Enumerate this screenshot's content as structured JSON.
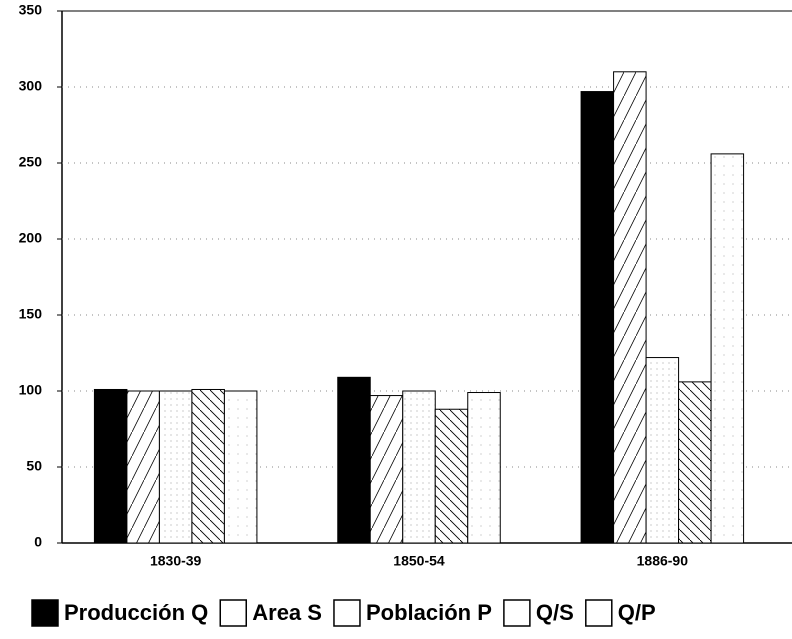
{
  "chart_data": {
    "type": "bar",
    "categories": [
      "1830-39",
      "1850-54",
      "1886-90"
    ],
    "series": [
      {
        "name": "Producción Q",
        "color": "#000000",
        "pattern": "solid",
        "values": [
          101,
          109,
          297
        ]
      },
      {
        "name": "Area S",
        "color": "#ffffff",
        "pattern": "hatch-up",
        "values": [
          100,
          97,
          310
        ]
      },
      {
        "name": "Población P",
        "color": "#ffffff",
        "pattern": "dots",
        "values": [
          100,
          100,
          122
        ]
      },
      {
        "name": "Q/S",
        "color": "#ffffff",
        "pattern": "hatch-down",
        "values": [
          101,
          88,
          106
        ]
      },
      {
        "name": "Q/P",
        "color": "#ffffff",
        "pattern": "dots-sparse",
        "values": [
          100,
          99,
          256
        ]
      }
    ],
    "ylim": [
      0,
      350
    ],
    "yticks": [
      0,
      50,
      100,
      150,
      200,
      250,
      300,
      350
    ],
    "grid": true,
    "legend": "bottom"
  }
}
